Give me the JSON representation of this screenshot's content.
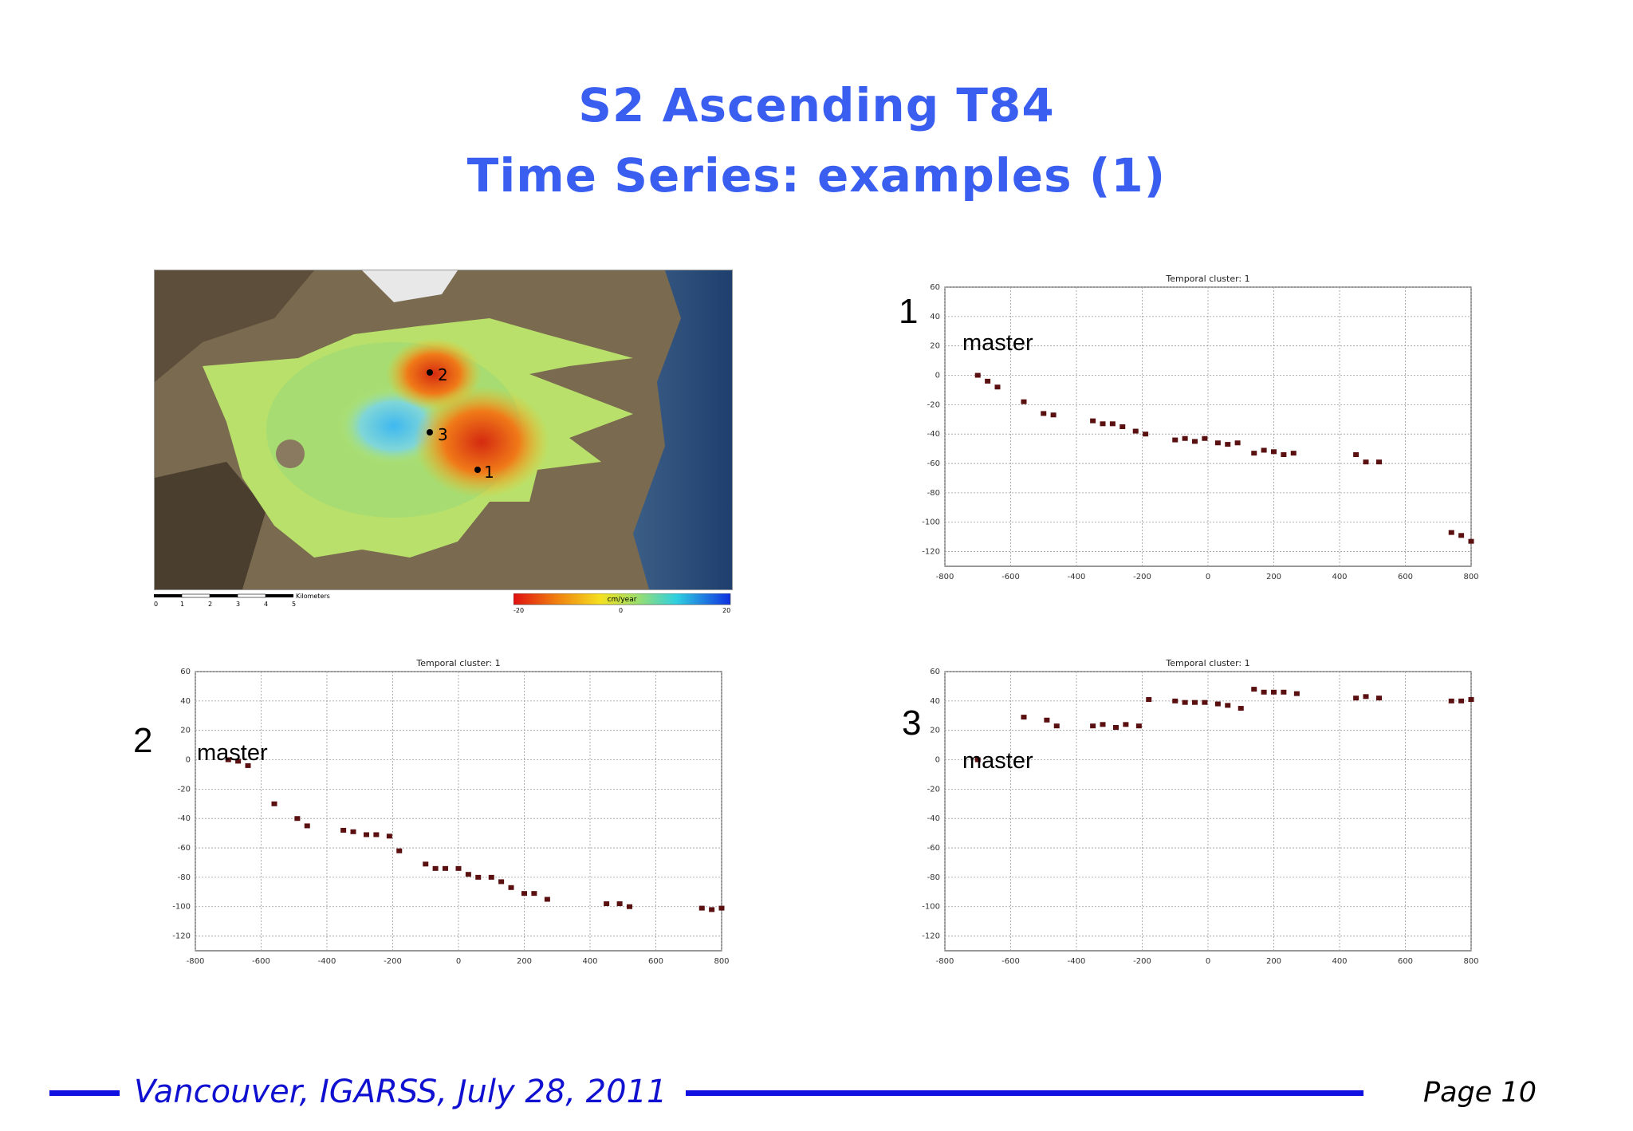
{
  "slide": {
    "title_line1": "S2 Ascending T84",
    "title_line2": "Time Series: examples (1)",
    "footer": "Vancouver, IGARSS, July 28, 2011",
    "page": "Page 10",
    "colors": {
      "title": "#3a5ff0",
      "footer_line": "#1010e0",
      "marker": "#5a1010"
    }
  },
  "map": {
    "scale_label": "Kilometers",
    "scale_ticks": [
      "0",
      "1",
      "2",
      "3",
      "4",
      "5"
    ],
    "legend_title": "cm/year",
    "legend_ticks": [
      "-20",
      "0",
      "20"
    ],
    "points": [
      "1",
      "2",
      "3"
    ]
  },
  "chart_data": [
    {
      "id": "cluster-1",
      "type": "scatter",
      "title": "Temporal cluster: 1",
      "panel_label": "1",
      "annotation": "master",
      "xlim": [
        -800,
        800
      ],
      "ylim": [
        -130,
        60
      ],
      "xticks": [
        -800,
        -600,
        -400,
        -200,
        0,
        200,
        400,
        600,
        800
      ],
      "yticks": [
        60,
        40,
        20,
        0,
        -20,
        -40,
        -60,
        -80,
        -100,
        -120
      ],
      "grid": true,
      "x": [
        -700,
        -670,
        -640,
        -560,
        -500,
        -470,
        -350,
        -320,
        -290,
        -260,
        -220,
        -190,
        -100,
        -70,
        -40,
        -10,
        30,
        60,
        90,
        140,
        170,
        200,
        230,
        260,
        450,
        480,
        520,
        740,
        770,
        800
      ],
      "y": [
        0,
        -4,
        -8,
        -18,
        -26,
        -27,
        -31,
        -33,
        -33,
        -35,
        -38,
        -40,
        -44,
        -43,
        -45,
        -43,
        -46,
        -47,
        -46,
        -53,
        -51,
        -52,
        -54,
        -53,
        -54,
        -59,
        -59,
        -107,
        -109,
        -113
      ]
    },
    {
      "id": "cluster-2",
      "type": "scatter",
      "title": "Temporal cluster: 1",
      "panel_label": "2",
      "annotation": "master",
      "xlim": [
        -800,
        800
      ],
      "ylim": [
        -130,
        60
      ],
      "xticks": [
        -800,
        -600,
        -400,
        -200,
        0,
        200,
        400,
        600,
        800
      ],
      "yticks": [
        60,
        40,
        20,
        0,
        -20,
        -40,
        -60,
        -80,
        -100,
        -120
      ],
      "grid": true,
      "x": [
        -700,
        -670,
        -640,
        -560,
        -490,
        -460,
        -350,
        -320,
        -280,
        -250,
        -210,
        -180,
        -100,
        -70,
        -40,
        0,
        30,
        60,
        100,
        130,
        160,
        200,
        230,
        270,
        450,
        490,
        520,
        740,
        770,
        800
      ],
      "y": [
        0,
        -1,
        -4,
        -30,
        -40,
        -45,
        -48,
        -49,
        -51,
        -51,
        -52,
        -62,
        -71,
        -74,
        -74,
        -74,
        -78,
        -80,
        -80,
        -83,
        -87,
        -91,
        -91,
        -95,
        -98,
        -98,
        -100,
        -101,
        -102,
        -101
      ]
    },
    {
      "id": "cluster-3",
      "type": "scatter",
      "title": "Temporal cluster: 1",
      "panel_label": "3",
      "annotation": "master",
      "xlim": [
        -800,
        800
      ],
      "ylim": [
        -130,
        60
      ],
      "xticks": [
        -800,
        -600,
        -400,
        -200,
        0,
        200,
        400,
        600,
        800
      ],
      "yticks": [
        60,
        40,
        20,
        0,
        -20,
        -40,
        -60,
        -80,
        -100,
        -120
      ],
      "grid": true,
      "x": [
        -700,
        -560,
        -490,
        -460,
        -350,
        -320,
        -280,
        -250,
        -210,
        -180,
        -100,
        -70,
        -40,
        -10,
        30,
        60,
        100,
        140,
        170,
        200,
        230,
        270,
        450,
        480,
        520,
        740,
        770,
        800
      ],
      "y": [
        0,
        29,
        27,
        23,
        23,
        24,
        22,
        24,
        23,
        41,
        40,
        39,
        39,
        39,
        38,
        37,
        35,
        48,
        46,
        46,
        46,
        45,
        42,
        43,
        42,
        40,
        40,
        41
      ]
    }
  ]
}
